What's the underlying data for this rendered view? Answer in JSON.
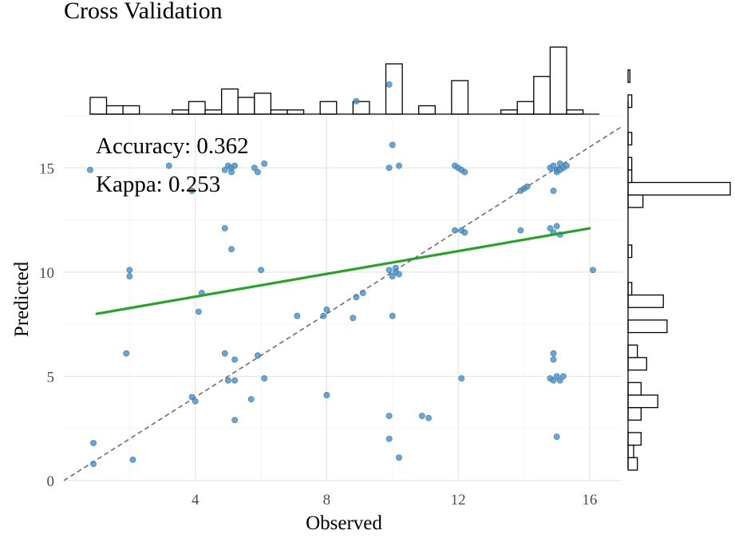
{
  "chart_data": {
    "type": "scatter",
    "title": "Cross Validation",
    "xlabel": "Observed",
    "ylabel": "Predicted",
    "xlim": [
      0,
      17
    ],
    "ylim": [
      0,
      17.5
    ],
    "x_ticks": [
      4,
      8,
      12,
      16
    ],
    "y_ticks": [
      0,
      5,
      10,
      15
    ],
    "grid": true,
    "annotations": [
      "Accuracy: 0.362",
      "Kappa: 0.253"
    ],
    "reference_line": {
      "type": "identity",
      "style": "dashed",
      "color": "#6e6e6e"
    },
    "fit_line": {
      "x": [
        1,
        16
      ],
      "y": [
        8.0,
        12.1
      ],
      "color": "#2ca02c"
    },
    "point_color": "#4a8fc4",
    "points": [
      [
        0.8,
        14.9
      ],
      [
        0.9,
        1.8
      ],
      [
        0.9,
        0.8
      ],
      [
        2.0,
        10.1
      ],
      [
        2.0,
        9.8
      ],
      [
        1.9,
        6.1
      ],
      [
        2.1,
        1.0
      ],
      [
        3.2,
        15.1
      ],
      [
        3.9,
        13.9
      ],
      [
        3.9,
        4.0
      ],
      [
        4.0,
        3.8
      ],
      [
        4.2,
        9.0
      ],
      [
        4.1,
        8.1
      ],
      [
        4.9,
        14.9
      ],
      [
        5.0,
        15.1
      ],
      [
        5.1,
        15.0
      ],
      [
        5.2,
        15.1
      ],
      [
        5.1,
        14.8
      ],
      [
        4.9,
        12.1
      ],
      [
        5.1,
        11.1
      ],
      [
        4.9,
        6.1
      ],
      [
        5.2,
        5.8
      ],
      [
        5.0,
        4.8
      ],
      [
        5.2,
        4.8
      ],
      [
        5.2,
        2.9
      ],
      [
        5.8,
        15.0
      ],
      [
        5.9,
        14.8
      ],
      [
        6.1,
        15.2
      ],
      [
        6.0,
        10.1
      ],
      [
        5.9,
        6.0
      ],
      [
        5.7,
        3.9
      ],
      [
        6.1,
        4.9
      ],
      [
        7.1,
        7.9
      ],
      [
        7.9,
        7.9
      ],
      [
        8.0,
        8.2
      ],
      [
        8.0,
        4.1
      ],
      [
        8.9,
        18.2
      ],
      [
        8.8,
        7.8
      ],
      [
        8.9,
        8.8
      ],
      [
        9.1,
        9.0
      ],
      [
        9.9,
        19.0
      ],
      [
        10.0,
        16.1
      ],
      [
        9.9,
        15.0
      ],
      [
        10.2,
        15.1
      ],
      [
        9.9,
        10.1
      ],
      [
        10.1,
        10.0
      ],
      [
        10.2,
        9.9
      ],
      [
        10.0,
        9.8
      ],
      [
        10.1,
        10.2
      ],
      [
        10.0,
        7.9
      ],
      [
        9.9,
        3.1
      ],
      [
        9.9,
        2.0
      ],
      [
        10.2,
        1.1
      ],
      [
        10.9,
        3.1
      ],
      [
        11.1,
        3.0
      ],
      [
        11.9,
        15.1
      ],
      [
        12.0,
        15.0
      ],
      [
        12.1,
        14.9
      ],
      [
        12.2,
        14.8
      ],
      [
        11.9,
        12.0
      ],
      [
        12.1,
        12.0
      ],
      [
        12.2,
        11.9
      ],
      [
        12.1,
        4.9
      ],
      [
        13.9,
        13.9
      ],
      [
        14.1,
        14.1
      ],
      [
        14.0,
        14.0
      ],
      [
        13.9,
        12.0
      ],
      [
        14.8,
        15.0
      ],
      [
        14.9,
        15.1
      ],
      [
        15.0,
        14.9
      ],
      [
        15.1,
        15.2
      ],
      [
        15.2,
        15.0
      ],
      [
        15.0,
        14.8
      ],
      [
        14.9,
        13.9
      ],
      [
        15.3,
        15.1
      ],
      [
        15.1,
        14.9
      ],
      [
        14.8,
        12.1
      ],
      [
        14.9,
        11.9
      ],
      [
        15.0,
        12.2
      ],
      [
        15.1,
        11.8
      ],
      [
        14.9,
        6.1
      ],
      [
        14.9,
        5.8
      ],
      [
        14.8,
        4.9
      ],
      [
        15.0,
        5.0
      ],
      [
        15.1,
        4.8
      ],
      [
        15.2,
        5.0
      ],
      [
        14.9,
        4.8
      ],
      [
        15.0,
        2.1
      ],
      [
        16.1,
        10.1
      ]
    ],
    "top_histogram": {
      "bin_start": 0.5,
      "bin_width": 0.5,
      "counts": [
        2,
        1,
        1,
        0,
        0,
        0.5,
        1.5,
        0.5,
        3,
        2,
        2.5,
        0.5,
        0.5,
        0,
        1.5,
        0,
        1.5,
        0,
        6,
        0,
        1,
        0,
        4,
        0,
        0,
        0.5,
        1.5,
        4.5,
        8,
        0.5
      ]
    },
    "right_histogram": {
      "bin_start": 0.5,
      "bin_width": 0.6,
      "counts": [
        0.5,
        0.3,
        0.7,
        0,
        0.7,
        1.6,
        0.7,
        0,
        1.0,
        0.5,
        0,
        2.1,
        0,
        1.9,
        0.2,
        0,
        0,
        0.2,
        0,
        0,
        0,
        0.8,
        5.5,
        0.2,
        0.2,
        0,
        0.2,
        0,
        0,
        0.2,
        0,
        0.1
      ]
    }
  }
}
